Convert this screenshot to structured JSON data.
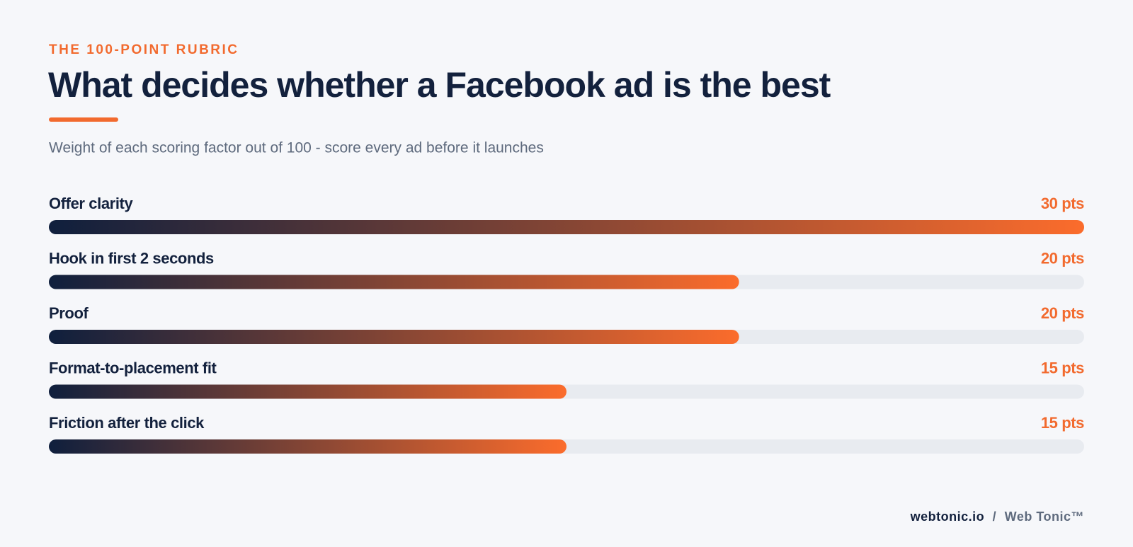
{
  "chart_data": {
    "type": "bar",
    "orientation": "horizontal",
    "kicker": "THE 100-POINT RUBRIC",
    "title": "What decides whether a Facebook ad is the best",
    "subtitle": "Weight of each scoring factor out of 100 - score every ad before it launches",
    "categories": [
      "Offer clarity",
      "Hook in first 2 seconds",
      "Proof",
      "Format-to-placement fit",
      "Friction after the click"
    ],
    "values": [
      30,
      20,
      20,
      15,
      15
    ],
    "value_labels": [
      "30 pts",
      "20 pts",
      "20 pts",
      "15 pts",
      "15 pts"
    ],
    "colors": [
      "#0f1f3d",
      "#fb6c2c"
    ],
    "track_color": "#e8ebf0",
    "xlim": [
      0,
      30
    ],
    "footer": [
      "webtonic.io",
      "/",
      "Web Tonic™"
    ]
  }
}
